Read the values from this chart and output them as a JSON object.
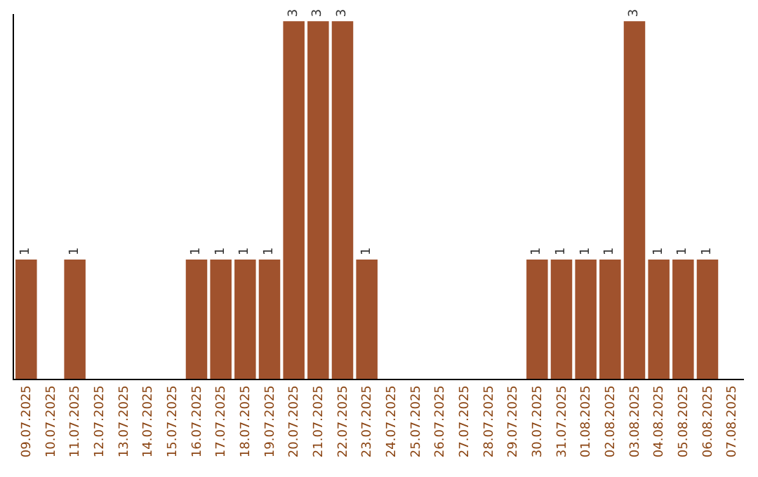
{
  "chart_data": {
    "type": "bar",
    "categories": [
      "09.07.2025",
      "10.07.2025",
      "11.07.2025",
      "12.07.2025",
      "13.07.2025",
      "14.07.2025",
      "15.07.2025",
      "16.07.2025",
      "17.07.2025",
      "18.07.2025",
      "19.07.2025",
      "20.07.2025",
      "21.07.2025",
      "22.07.2025",
      "23.07.2025",
      "24.07.2025",
      "25.07.2025",
      "26.07.2025",
      "27.07.2025",
      "28.07.2025",
      "29.07.2025",
      "30.07.2025",
      "31.07.2025",
      "01.08.2025",
      "02.08.2025",
      "03.08.2025",
      "04.08.2025",
      "05.08.2025",
      "06.08.2025",
      "07.08.2025"
    ],
    "values": [
      1,
      null,
      1,
      null,
      null,
      null,
      null,
      1,
      1,
      1,
      1,
      3,
      3,
      3,
      1,
      null,
      null,
      null,
      null,
      null,
      null,
      1,
      1,
      1,
      1,
      3,
      1,
      1,
      1,
      null
    ],
    "color": "#a0522d",
    "ylim": [
      0,
      3.06
    ],
    "data_labels": true,
    "tick_labels": "x"
  }
}
